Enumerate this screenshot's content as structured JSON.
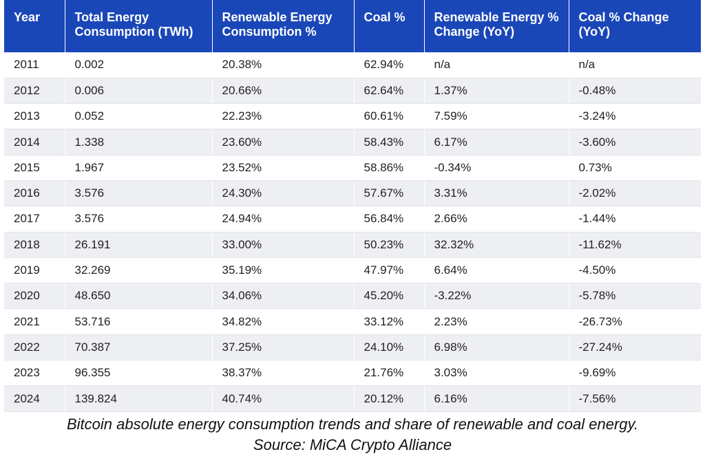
{
  "chart_data": {
    "type": "table",
    "columns": [
      "Year",
      "Total Energy Consumption (TWh)",
      "Renewable Energy Consumption %",
      "Coal %",
      "Renewable Energy % Change (YoY)",
      "Coal % Change (YoY)"
    ],
    "rows": [
      [
        "2011",
        "0.002",
        "20.38%",
        "62.94%",
        "n/a",
        "n/a"
      ],
      [
        "2012",
        "0.006",
        "20.66%",
        "62.64%",
        "1.37%",
        "-0.48%"
      ],
      [
        "2013",
        "0.052",
        "22.23%",
        "60.61%",
        "7.59%",
        "-3.24%"
      ],
      [
        "2014",
        "1.338",
        "23.60%",
        "58.43%",
        "6.17%",
        "-3.60%"
      ],
      [
        "2015",
        "1.967",
        "23.52%",
        "58.86%",
        "-0.34%",
        "0.73%"
      ],
      [
        "2016",
        "3.576",
        "24.30%",
        "57.67%",
        "3.31%",
        "-2.02%"
      ],
      [
        "2017",
        "3.576",
        "24.94%",
        "56.84%",
        "2.66%",
        "-1.44%"
      ],
      [
        "2018",
        "26.191",
        "33.00%",
        "50.23%",
        "32.32%",
        "-11.62%"
      ],
      [
        "2019",
        "32.269",
        "35.19%",
        "47.97%",
        "6.64%",
        "-4.50%"
      ],
      [
        "2020",
        "48.650",
        "34.06%",
        "45.20%",
        "-3.22%",
        "-5.78%"
      ],
      [
        "2021",
        "53.716",
        "34.82%",
        "33.12%",
        "2.23%",
        "-26.73%"
      ],
      [
        "2022",
        "70.387",
        "37.25%",
        "24.10%",
        "6.98%",
        "-27.24%"
      ],
      [
        "2023",
        "96.355",
        "38.37%",
        "21.76%",
        "3.03%",
        "-9.69%"
      ],
      [
        "2024",
        "139.824",
        "40.74%",
        "20.12%",
        "6.16%",
        "-7.56%"
      ]
    ],
    "title": "",
    "caption_line1": "Bitcoin absolute energy consumption trends and share of renewable and coal energy.",
    "caption_line2": "Source: MiCA Crypto Alliance"
  },
  "colors": {
    "header_bg": "#1a47b8",
    "header_text": "#ffffff",
    "row_alt_bg": "#eeeff3"
  }
}
